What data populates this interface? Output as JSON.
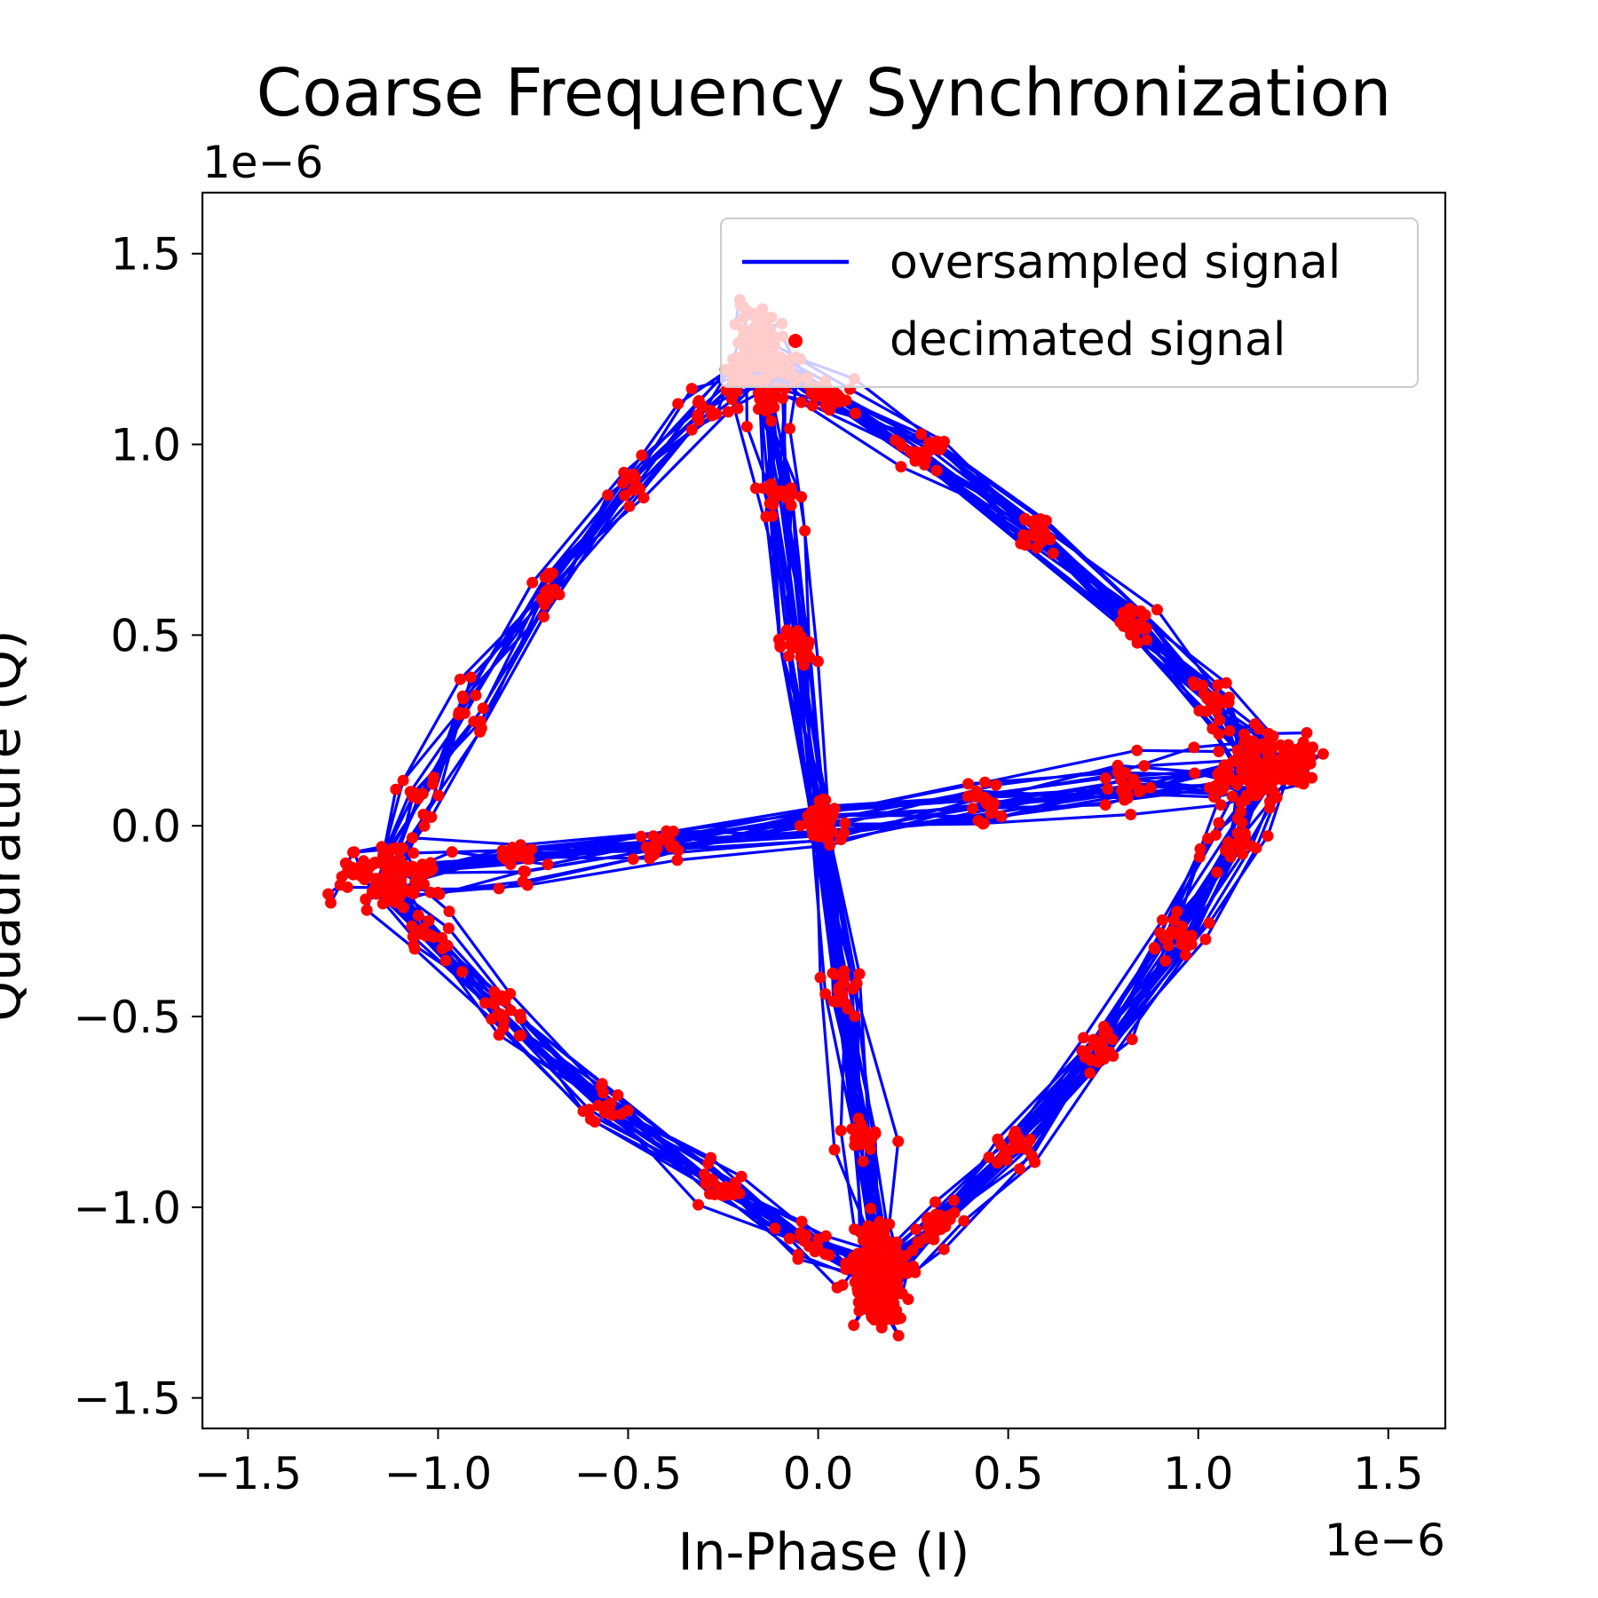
{
  "chart_data": {
    "type": "scatter",
    "title": "Coarse Frequency Synchronization",
    "xlabel": "In-Phase (I)",
    "ylabel": "Quadrature (Q)",
    "x_offset_label": "1e−6",
    "y_offset_label": "1e−6",
    "xlim": [
      -1.62,
      1.65
    ],
    "ylim": [
      -1.58,
      1.66
    ],
    "xticks": [
      -1.5,
      -1.0,
      -0.5,
      0.0,
      0.5,
      1.0,
      1.5
    ],
    "xtick_labels": [
      "−1.5",
      "−1.0",
      "−0.5",
      "0.0",
      "0.5",
      "1.0",
      "1.5"
    ],
    "yticks": [
      -1.5,
      -1.0,
      -0.5,
      0.0,
      0.5,
      1.0,
      1.5
    ],
    "ytick_labels": [
      "−1.5",
      "−1.0",
      "−0.5",
      "0.0",
      "0.5",
      "1.0",
      "1.5"
    ],
    "grid": false,
    "legend_position": "top-right",
    "series": [
      {
        "name": "oversampled signal",
        "kind": "line",
        "color": "#0000ff",
        "description": "QPSK constellation trajectory with residual frequency offset; clusters near (-1.1,-0.1), (0.15,-1.15), (1.15,0.15), (-0.15,1.2)"
      },
      {
        "name": "decimated signal",
        "kind": "marker",
        "color": "#ff0000"
      }
    ],
    "constellation_points": [
      {
        "x": -1.12,
        "y": -0.12
      },
      {
        "x": 0.15,
        "y": -1.15
      },
      {
        "x": 1.15,
        "y": 0.15
      },
      {
        "x": -0.15,
        "y": 1.2
      }
    ]
  }
}
